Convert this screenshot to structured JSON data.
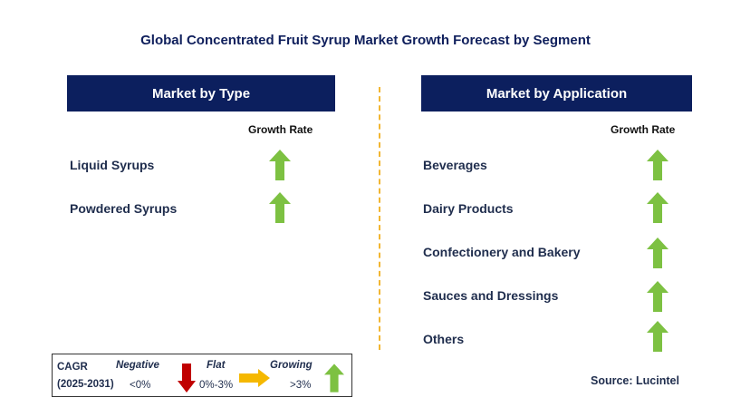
{
  "title": "Global Concentrated Fruit Syrup Market Growth Forecast by Segment",
  "left_panel": {
    "header": "Market by Type",
    "growth_label": "Growth Rate",
    "rows": [
      {
        "label": "Liquid Syrups",
        "trend": "growing"
      },
      {
        "label": "Powdered Syrups",
        "trend": "growing"
      }
    ]
  },
  "right_panel": {
    "header": "Market by Application",
    "growth_label": "Growth Rate",
    "rows": [
      {
        "label": "Beverages",
        "trend": "growing"
      },
      {
        "label": "Dairy Products",
        "trend": "growing"
      },
      {
        "label": "Confectionery and Bakery",
        "trend": "growing"
      },
      {
        "label": "Sauces and Dressings",
        "trend": "growing"
      },
      {
        "label": "Others",
        "trend": "growing"
      }
    ]
  },
  "legend": {
    "cagr_label": "CAGR",
    "period": "(2025-2031)",
    "negative_label": "Negative",
    "negative_value": "<0%",
    "flat_label": "Flat",
    "flat_value": "0%-3%",
    "growing_label": "Growing",
    "growing_value": ">3%"
  },
  "source": "Source: Lucintel",
  "colors": {
    "header_bg": "#0c1f5e",
    "growing_arrow": "#7dc142",
    "negative_arrow": "#c00000",
    "flat_arrow": "#f5b800",
    "divider": "#f2b632"
  }
}
